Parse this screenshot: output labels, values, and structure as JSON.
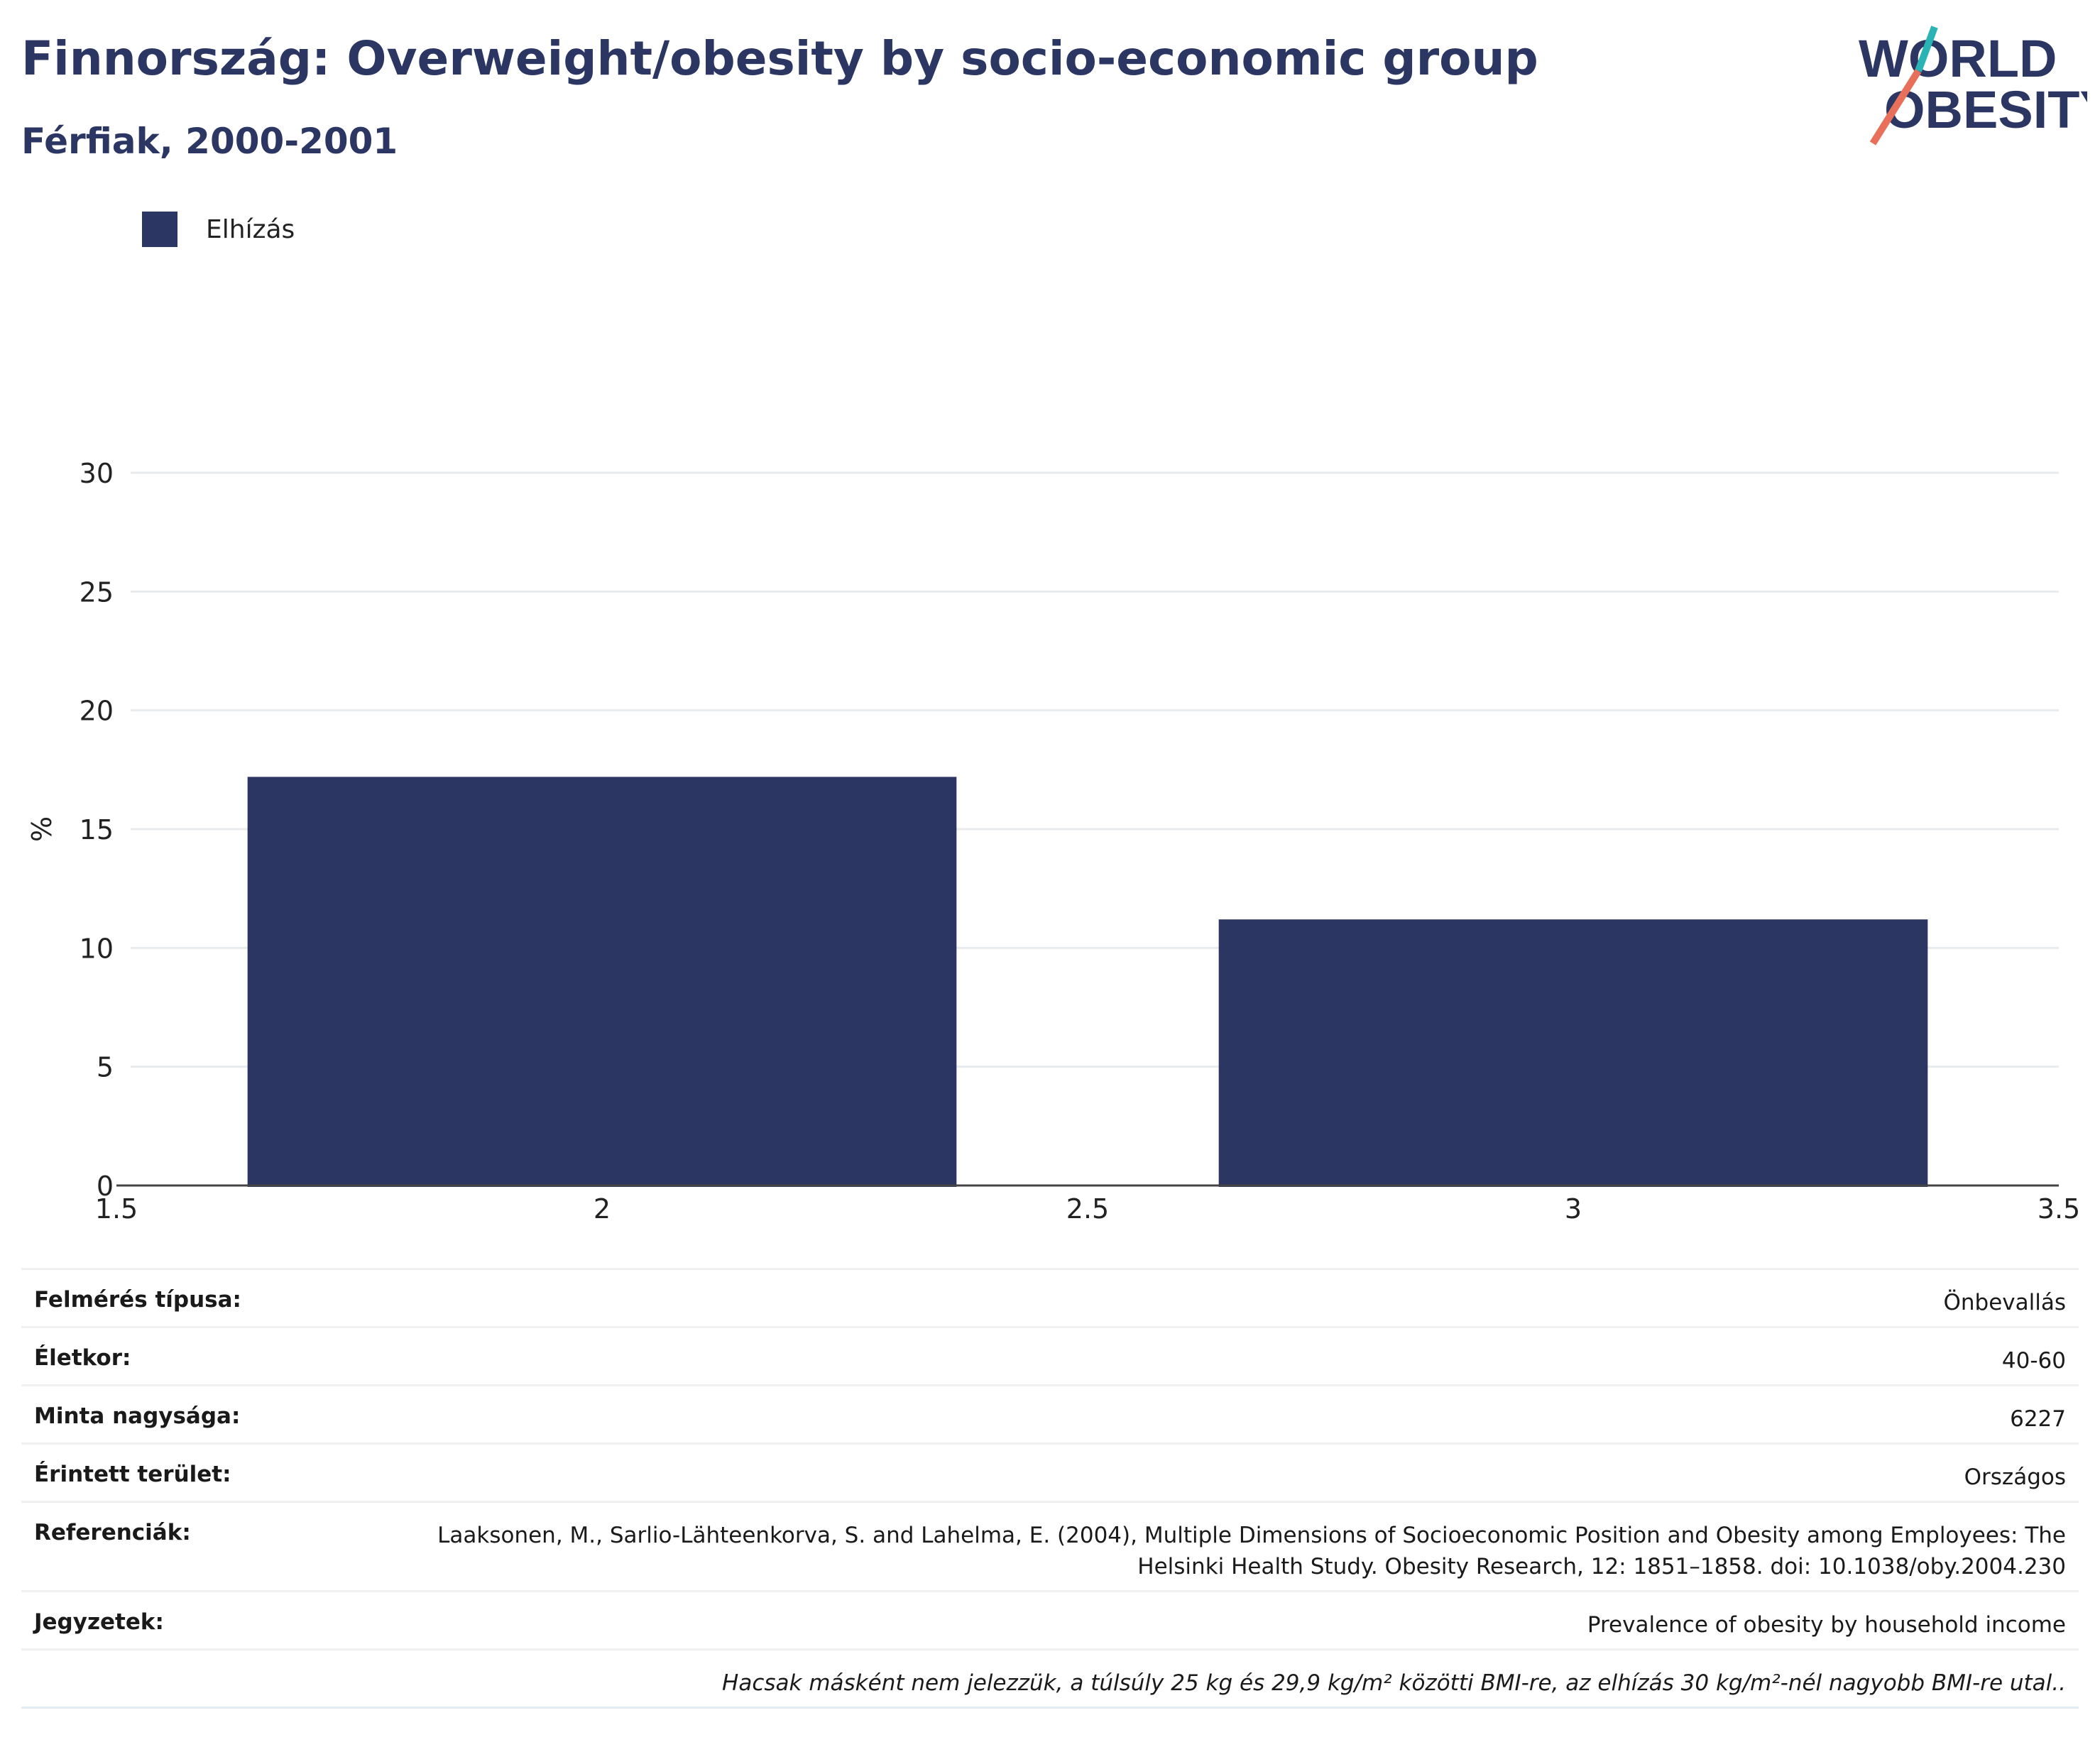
{
  "header": {
    "title": "Finnország: Overweight/obesity by socio-economic group",
    "subtitle": "Férfiak, 2000-2001"
  },
  "logo": {
    "line1": "WORLD",
    "line2": "OBESITY"
  },
  "colors": {
    "bar": "#2b3663",
    "title": "#2b3663",
    "logo_teal": "#2ab3b5",
    "logo_coral": "#e8705a"
  },
  "chart_data": {
    "type": "bar",
    "title": "Finnország: Overweight/obesity by socio-economic group",
    "subtitle": "Férfiak, 2000-2001",
    "ylabel": "%",
    "xlabel": "",
    "xlim": [
      1.5,
      3.5
    ],
    "ylim": [
      0,
      30
    ],
    "xticks": [
      1.5,
      2,
      2.5,
      3,
      3.5
    ],
    "xtick_labels": [
      "1.5",
      "2",
      "2.5",
      "3",
      "3.5"
    ],
    "yticks": [
      0,
      5,
      10,
      15,
      20,
      25,
      30
    ],
    "bar_width": 0.73,
    "grid": true,
    "legend_position": "top-left",
    "series": [
      {
        "name": "Elhízás",
        "color": "#2b3663",
        "x": [
          2,
          3
        ],
        "values": [
          17.2,
          11.2
        ]
      }
    ]
  },
  "info": {
    "rows": [
      {
        "key": "Felmérés típusa:",
        "value": "Önbevallás"
      },
      {
        "key": "Életkor:",
        "value": "40-60"
      },
      {
        "key": "Minta nagysága:",
        "value": "6227"
      },
      {
        "key": "Érintett terület:",
        "value": "Országos"
      },
      {
        "key": "Referenciák:",
        "value": "Laaksonen, M., Sarlio-Lähteenkorva, S. and Lahelma, E. (2004), Multiple Dimensions of Socioeconomic Position and Obesity among Employees: The Helsinki Health Study. Obesity Research, 12: 1851–1858. doi: 10.1038/oby.2004.230"
      },
      {
        "key": "Jegyzetek:",
        "value": "Prevalence of obesity by household income"
      }
    ],
    "footnote": "Hacsak másként nem jelezzük, a túlsúly 25 kg és 29,9 kg/m² közötti BMI-re, az elhízás 30 kg/m²-nél nagyobb BMI-re utal.."
  }
}
